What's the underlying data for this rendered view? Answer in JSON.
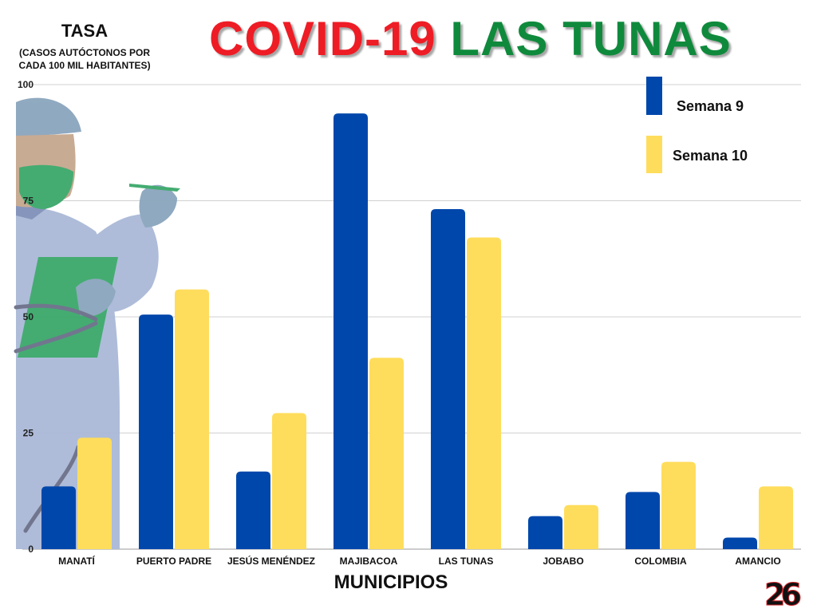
{
  "header": {
    "title_part1": "COVID-19",
    "title_part2": "LAS TUNAS",
    "ylabel_title": "TASA",
    "ylabel_sub1": "(CASOS AUTÓCTONOS POR",
    "ylabel_sub2": "CADA 100 MIL HABITANTES)",
    "xlabel": "MUNICIPIOS"
  },
  "colors": {
    "title_red": "#ee1c25",
    "title_green": "#0f8a3c",
    "series1": "#0047ab",
    "series2": "#ffdd5c"
  },
  "logo": {
    "text": "26",
    "name": "logo-26"
  },
  "chart_data": {
    "type": "bar",
    "title": "COVID-19 LAS TUNAS",
    "xlabel": "MUNICIPIOS",
    "ylabel": "TASA (CASOS AUTÓCTONOS POR CADA 100 MIL HABITANTES)",
    "ylim": [
      0,
      100
    ],
    "yticks": [
      0,
      25,
      50,
      75,
      100
    ],
    "grid": true,
    "legend": "top-right",
    "categories": [
      "MANATÍ",
      "PUERTO PADRE",
      "JESÚS MENÉNDEZ",
      "MAJIBACOA",
      "LAS TUNAS",
      "JOBABO",
      "COLOMBIA",
      "AMANCIO"
    ],
    "series": [
      {
        "name": "Semana 9",
        "color": "#0047ab",
        "values": [
          13.5,
          50.5,
          16.7,
          93.8,
          73.2,
          7.1,
          12.3,
          2.5
        ]
      },
      {
        "name": "Semana 10",
        "color": "#ffdd5c",
        "values": [
          24.0,
          55.9,
          29.3,
          41.2,
          67.1,
          9.5,
          18.8,
          13.5
        ]
      }
    ]
  }
}
